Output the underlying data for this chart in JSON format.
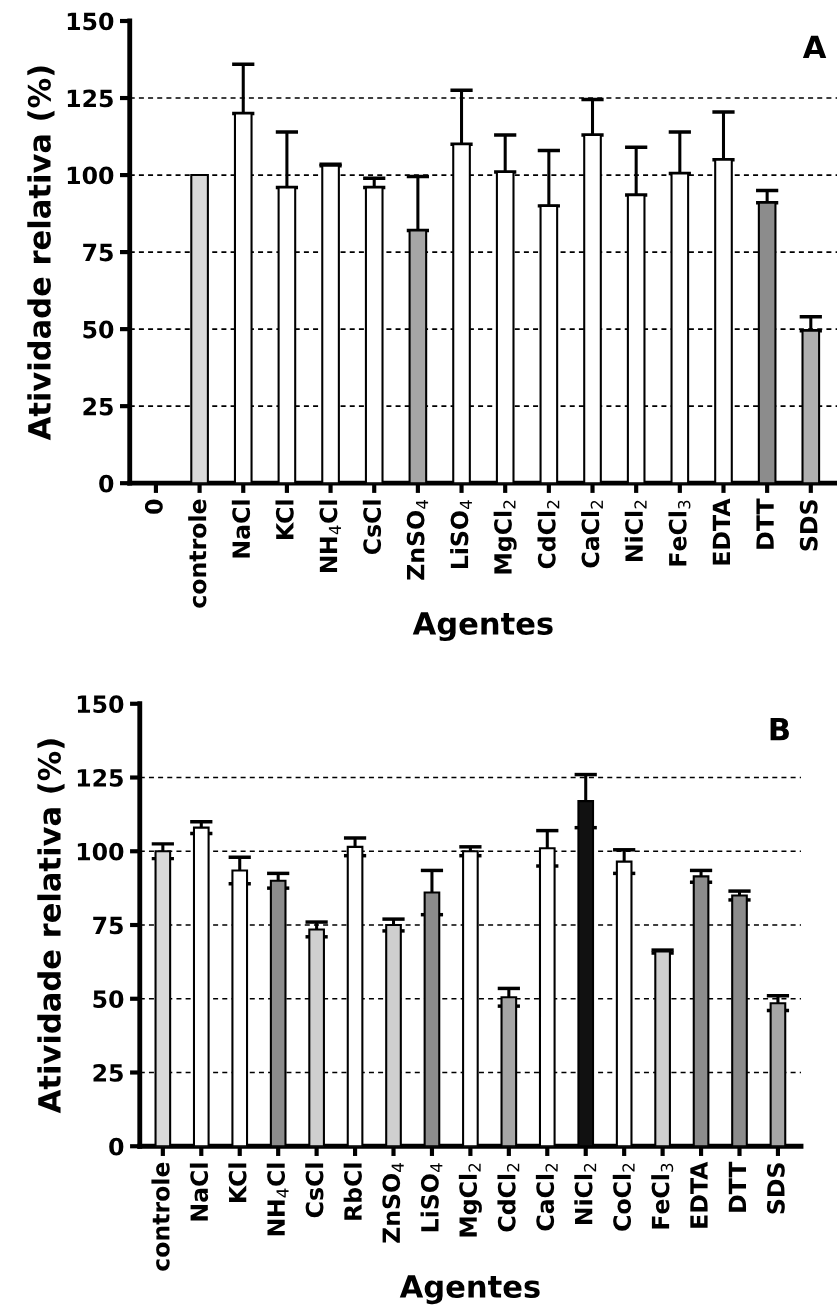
{
  "chart_data": [
    {
      "type": "bar",
      "ylabel": "Atividade relativa (%)",
      "xlabel": "Agentes",
      "annotations": [
        "A"
      ],
      "categories": [
        "0",
        "controle",
        "NaCl",
        "KCl",
        "NH$_{4}$Cl",
        "CsCl",
        "ZnSO$_{4}$",
        "LiSO$_{4}$",
        "MgCl$_{2}$",
        "CdCl$_{2}$",
        "CaCl$_{2}$",
        "NiCl$_{2}$",
        "FeCl$_{3}$",
        "EDTA",
        "DTT",
        "SDS"
      ],
      "values": [
        null,
        100,
        120,
        96,
        103,
        96,
        82,
        110,
        101,
        90,
        113,
        93.5,
        100.5,
        105,
        91,
        49.5
      ],
      "errors": [
        null,
        null,
        [
          120,
          136
        ],
        [
          96,
          114
        ],
        [
          103,
          103.5
        ],
        [
          96,
          99
        ],
        [
          82,
          99.5
        ],
        [
          110,
          127.5
        ],
        [
          101,
          113
        ],
        [
          90,
          108
        ],
        [
          113,
          124.5
        ],
        [
          93.5,
          109
        ],
        [
          100.5,
          114
        ],
        [
          105,
          120.5
        ],
        [
          91,
          95
        ],
        [
          49.5,
          54
        ]
      ],
      "colors": [
        "#ffffff",
        "#d9d9d9",
        "#ffffff",
        "#ffffff",
        "#ffffff",
        "#ffffff",
        "#a6a6a6",
        "#ffffff",
        "#ffffff",
        "#ffffff",
        "#ffffff",
        "#ffffff",
        "#ffffff",
        "#ffffff",
        "#8c8c8c",
        "#b0b0b0"
      ],
      "ylim": [
        0,
        150
      ],
      "yticks": [
        0,
        25,
        50,
        75,
        100,
        125,
        150
      ],
      "grid": "y",
      "legend": false
    },
    {
      "type": "bar",
      "ylabel": "Atividade relativa (%)",
      "xlabel": "Agentes",
      "annotations": [
        "B"
      ],
      "categories": [
        "controle",
        "NaCl",
        "KCl",
        "NH$_{4}$Cl",
        "CsCl",
        "RbCl",
        "ZnSO$_{4}$",
        "LiSO$_{4}$",
        "MgCl$_{2}$",
        "CdCl$_{2}$",
        "CaCl$_{2}$",
        "NiCl$_{2}$",
        "CoCl$_{2}$",
        "FeCl$_{3}$",
        "EDTA",
        "DTT",
        "SDS"
      ],
      "values": [
        100,
        108,
        93.5,
        90,
        73.5,
        101.5,
        75,
        86,
        100,
        50.5,
        101,
        117,
        96.5,
        66,
        91.5,
        85,
        48.5
      ],
      "errors": [
        2.5,
        2,
        4.5,
        2.5,
        2.5,
        3,
        2,
        7.5,
        1.5,
        3,
        6,
        9,
        4,
        0.5,
        2,
        1.5,
        2.5
      ],
      "colors": [
        "#d9d9d9",
        "#ffffff",
        "#ffffff",
        "#8c8c8c",
        "#cfcfcf",
        "#ffffff",
        "#cfcfcf",
        "#8c8c8c",
        "#ffffff",
        "#a6a6a6",
        "#ffffff",
        "#111111",
        "#ffffff",
        "#cfcfcf",
        "#8c8c8c",
        "#8c8c8c",
        "#a6a6a6"
      ],
      "ylim": [
        0,
        150
      ],
      "yticks": [
        0,
        25,
        50,
        75,
        100,
        125,
        150
      ],
      "grid": "y",
      "legend": false
    }
  ]
}
